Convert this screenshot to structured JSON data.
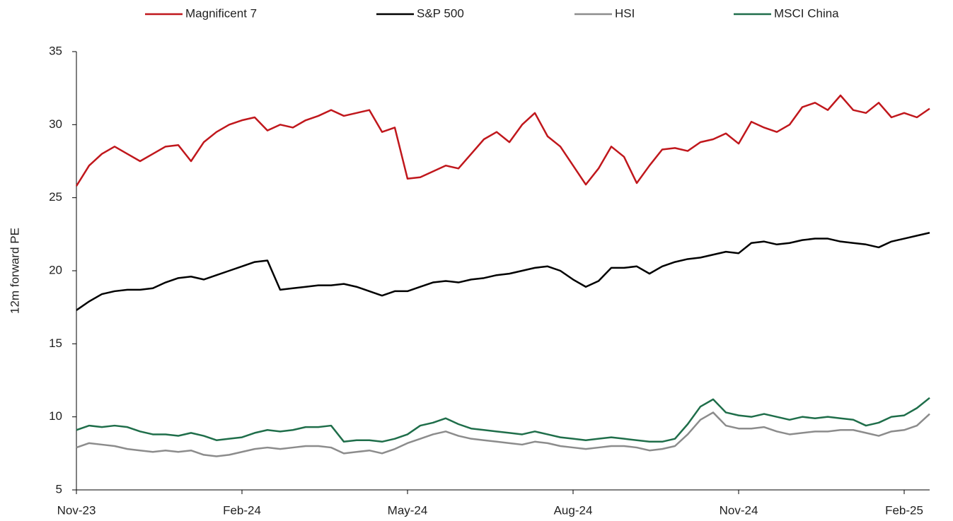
{
  "chart_data": {
    "type": "line",
    "y_label": "12m forward PE",
    "categories": [
      "Nov-23",
      null,
      null,
      null,
      null,
      null,
      null,
      null,
      null,
      null,
      null,
      null,
      null,
      "Feb-24",
      null,
      null,
      null,
      null,
      null,
      null,
      null,
      null,
      null,
      null,
      null,
      null,
      "May-24",
      null,
      null,
      null,
      null,
      null,
      null,
      null,
      null,
      null,
      null,
      null,
      null,
      "Aug-24",
      null,
      null,
      null,
      null,
      null,
      null,
      null,
      null,
      null,
      null,
      null,
      null,
      "Nov-24",
      null,
      null,
      null,
      null,
      null,
      null,
      null,
      null,
      null,
      null,
      null,
      null,
      "Feb-25",
      null,
      null
    ],
    "ylim": [
      5,
      35
    ],
    "yticks": [
      5,
      10,
      15,
      20,
      25,
      30,
      35
    ],
    "grid": false,
    "legend": "top",
    "series": [
      {
        "name": "Magnificent 7",
        "color": "#c0171c",
        "values": [
          25.8,
          27.2,
          28.0,
          28.5,
          28.0,
          27.5,
          28.0,
          28.5,
          28.6,
          27.5,
          28.8,
          29.5,
          30.0,
          30.3,
          30.5,
          29.6,
          30.0,
          29.8,
          30.3,
          30.6,
          31.0,
          30.6,
          30.8,
          31.0,
          29.5,
          29.8,
          26.3,
          26.4,
          26.8,
          27.2,
          27.0,
          28.0,
          29.0,
          29.5,
          28.8,
          30.0,
          30.8,
          29.2,
          28.5,
          27.2,
          25.9,
          27.0,
          28.5,
          27.8,
          26.0,
          27.2,
          28.3,
          28.4,
          28.2,
          28.8,
          29.0,
          29.4,
          28.7,
          30.2,
          29.8,
          29.5,
          30.0,
          31.2,
          31.5,
          31.0,
          32.0,
          31.0,
          30.8,
          31.5,
          30.5,
          30.8,
          30.5,
          31.1
        ]
      },
      {
        "name": "S&P 500",
        "color": "#000000",
        "values": [
          17.3,
          17.9,
          18.4,
          18.6,
          18.7,
          18.7,
          18.8,
          19.2,
          19.5,
          19.6,
          19.4,
          19.7,
          20.0,
          20.3,
          20.6,
          20.7,
          18.7,
          18.8,
          18.9,
          19.0,
          19.0,
          19.1,
          18.9,
          18.6,
          18.3,
          18.6,
          18.6,
          18.9,
          19.2,
          19.3,
          19.2,
          19.4,
          19.5,
          19.7,
          19.8,
          20.0,
          20.2,
          20.3,
          20.0,
          19.4,
          18.9,
          19.3,
          20.2,
          20.2,
          20.3,
          19.8,
          20.3,
          20.6,
          20.8,
          20.9,
          21.1,
          21.3,
          21.2,
          21.9,
          22.0,
          21.8,
          21.9,
          22.1,
          22.2,
          22.2,
          22.0,
          21.9,
          21.8,
          21.6,
          22.0,
          22.2,
          22.4,
          22.6
        ]
      },
      {
        "name": "HSI",
        "color": "#8c8c8c",
        "values": [
          7.9,
          8.2,
          8.1,
          8.0,
          7.8,
          7.7,
          7.6,
          7.7,
          7.6,
          7.7,
          7.4,
          7.3,
          7.4,
          7.6,
          7.8,
          7.9,
          7.8,
          7.9,
          8.0,
          8.0,
          7.9,
          7.5,
          7.6,
          7.7,
          7.5,
          7.8,
          8.2,
          8.5,
          8.8,
          9.0,
          8.7,
          8.5,
          8.4,
          8.3,
          8.2,
          8.1,
          8.3,
          8.2,
          8.0,
          7.9,
          7.8,
          7.9,
          8.0,
          8.0,
          7.9,
          7.7,
          7.8,
          8.0,
          8.8,
          9.8,
          10.3,
          9.4,
          9.2,
          9.2,
          9.3,
          9.0,
          8.8,
          8.9,
          9.0,
          9.0,
          9.1,
          9.1,
          8.9,
          8.7,
          9.0,
          9.1,
          9.4,
          10.2
        ]
      },
      {
        "name": "MSCI China",
        "color": "#1f6e4a",
        "values": [
          9.1,
          9.4,
          9.3,
          9.4,
          9.3,
          9.0,
          8.8,
          8.8,
          8.7,
          8.9,
          8.7,
          8.4,
          8.5,
          8.6,
          8.9,
          9.1,
          9.0,
          9.1,
          9.3,
          9.3,
          9.4,
          8.3,
          8.4,
          8.4,
          8.3,
          8.5,
          8.8,
          9.4,
          9.6,
          9.9,
          9.5,
          9.2,
          9.1,
          9.0,
          8.9,
          8.8,
          9.0,
          8.8,
          8.6,
          8.5,
          8.4,
          8.5,
          8.6,
          8.5,
          8.4,
          8.3,
          8.3,
          8.5,
          9.5,
          10.7,
          11.2,
          10.3,
          10.1,
          10.0,
          10.2,
          10.0,
          9.8,
          10.0,
          9.9,
          10.0,
          9.9,
          9.8,
          9.4,
          9.6,
          10.0,
          10.1,
          10.6,
          11.3
        ]
      }
    ]
  }
}
